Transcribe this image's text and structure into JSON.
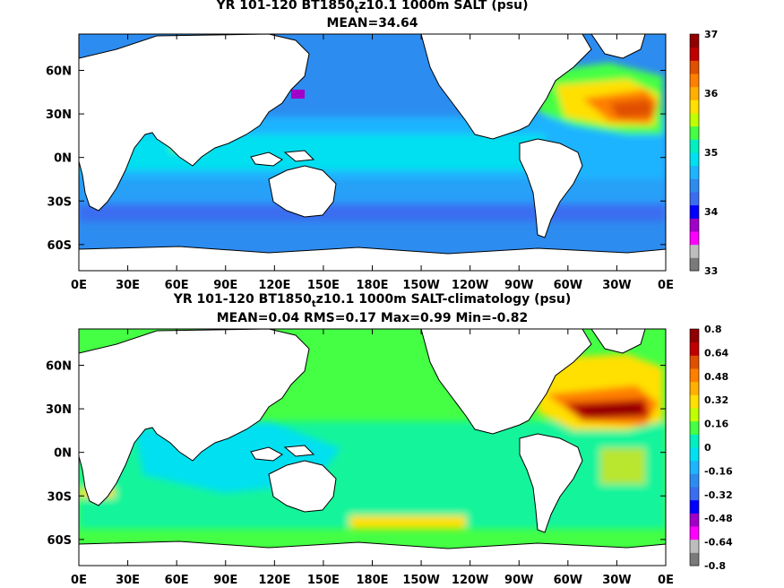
{
  "panels": [
    {
      "title_pre": "YR 101-120 BT1850",
      "title_sub": "t",
      "title_post": "z10.1 1000m SALT (psu)",
      "stats": "MEAN=34.64",
      "colorbar_labels": [
        "37",
        "36",
        "35",
        "34",
        "33"
      ],
      "colorbar_colors": [
        "#7a7a7a",
        "#bdbdbd",
        "#ff00ff",
        "#a000c8",
        "#0000ff",
        "#3a6df0",
        "#2d8cf0",
        "#1eb4ff",
        "#00e0f0",
        "#00f0c0",
        "#44ff44",
        "#bfff00",
        "#ffe000",
        "#ffb000",
        "#ff7f00",
        "#e05000",
        "#c00000",
        "#900000"
      ]
    },
    {
      "title_pre": "YR 101-120 BT1850",
      "title_sub": "t",
      "title_post": "z10.1 1000m SALT-climatology (psu)",
      "stats": "MEAN=0.04   RMS=0.17   Max=0.99   Min=-0.82",
      "colorbar_labels": [
        "0.8",
        "0.64",
        "0.48",
        "0.32",
        "0.16",
        "0",
        "-0.16",
        "-0.32",
        "-0.48",
        "-0.64",
        "-0.8"
      ],
      "colorbar_colors": [
        "#7a7a7a",
        "#bdbdbd",
        "#ff00ff",
        "#a000c8",
        "#0000ff",
        "#3a6df0",
        "#2d8cf0",
        "#1eb4ff",
        "#00e0f0",
        "#00f0c0",
        "#44ff44",
        "#bfff00",
        "#ffe000",
        "#ffb000",
        "#ff7f00",
        "#e05000",
        "#c00000",
        "#900000"
      ]
    }
  ],
  "chart_data": [
    {
      "type": "heatmap",
      "title": "YR 101-120 BT1850tz10.1 1000m SALT (psu)",
      "subtitle": "MEAN=34.64",
      "x_ticks": [
        "0E",
        "30E",
        "60E",
        "90E",
        "120E",
        "150E",
        "180E",
        "150W",
        "120W",
        "90W",
        "60W",
        "30W",
        "0E"
      ],
      "y_ticks": [
        "60N",
        "30N",
        "0N",
        "30S",
        "60S"
      ],
      "colorbar": {
        "min": 33,
        "max": 37,
        "labels": [
          "37",
          "36",
          "35",
          "34",
          "33"
        ]
      },
      "fields": {
        "background": 34.6,
        "regions": [
          {
            "name": "north-atlantic-subtropical-high",
            "value": 36.4
          },
          {
            "name": "mediterranean-outflow",
            "value": 36.8
          },
          {
            "name": "southern-ocean-band",
            "value": 34.3
          },
          {
            "name": "japan-sea",
            "value": 33.8
          }
        ]
      }
    },
    {
      "type": "heatmap",
      "title": "YR 101-120 BT1850tz10.1 1000m SALT-climatology (psu)",
      "subtitle": "MEAN=0.04   RMS=0.17   Max=0.99   Min=-0.82",
      "x_ticks": [
        "0E",
        "30E",
        "60E",
        "90E",
        "120E",
        "150E",
        "180E",
        "150W",
        "120W",
        "90W",
        "60W",
        "30W",
        "0E"
      ],
      "y_ticks": [
        "60N",
        "30N",
        "0N",
        "30S",
        "60S"
      ],
      "colorbar": {
        "min": -0.8,
        "max": 0.8,
        "labels": [
          "0.8",
          "0.64",
          "0.48",
          "0.32",
          "0.16",
          "0",
          "-0.16",
          "-0.32",
          "-0.48",
          "-0.64",
          "-0.8"
        ]
      },
      "fields": {
        "mean": 0.04,
        "rms": 0.17,
        "max": 0.99,
        "min": -0.82,
        "regions": [
          {
            "name": "north-atlantic-positive-anomaly",
            "value": 0.75
          },
          {
            "name": "indian-ocean-negative-anomaly",
            "value": -0.25
          },
          {
            "name": "south-pacific-positive-band",
            "value": 0.25
          }
        ]
      }
    }
  ]
}
